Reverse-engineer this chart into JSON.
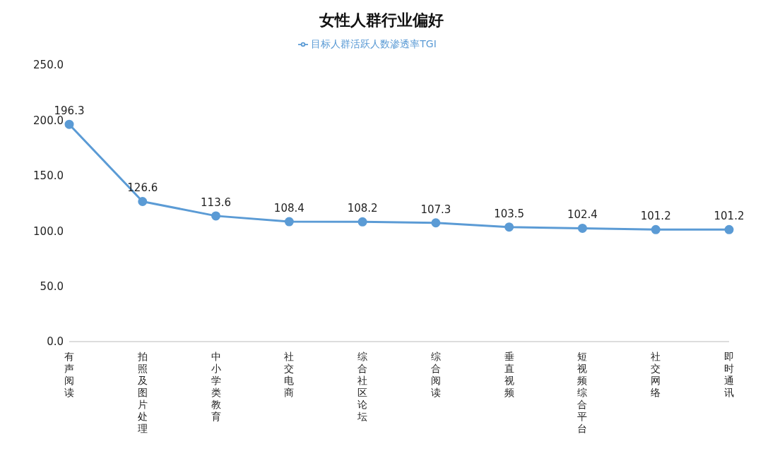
{
  "chart_data": {
    "type": "line",
    "title": "女性人群行业偏好",
    "categories": [
      "有声阅读",
      "拍照及图片处理",
      "中小学类教育",
      "社交电商",
      "综合社区论坛",
      "综合阅读",
      "垂直视频",
      "短视频综合平台",
      "社交网络",
      "即时通讯"
    ],
    "series": [
      {
        "name": "目标人群活跃人数渗透率TGI",
        "color": "#5b9bd5",
        "values": [
          196.3,
          126.6,
          113.6,
          108.4,
          108.2,
          107.3,
          103.5,
          102.4,
          101.2,
          101.2
        ]
      }
    ],
    "ylim": [
      0,
      250
    ],
    "yticks": [
      {
        "value": 0,
        "label": "0.0"
      },
      {
        "value": 50,
        "label": "50.0"
      },
      {
        "value": 100,
        "label": "100.0"
      },
      {
        "value": 150,
        "label": "150.0"
      },
      {
        "value": 200,
        "label": "200.0"
      },
      {
        "value": 250,
        "label": "250.0"
      }
    ],
    "data_labels": true,
    "legend": "top",
    "marker": "circle",
    "line_style": "solid",
    "grid": false
  }
}
